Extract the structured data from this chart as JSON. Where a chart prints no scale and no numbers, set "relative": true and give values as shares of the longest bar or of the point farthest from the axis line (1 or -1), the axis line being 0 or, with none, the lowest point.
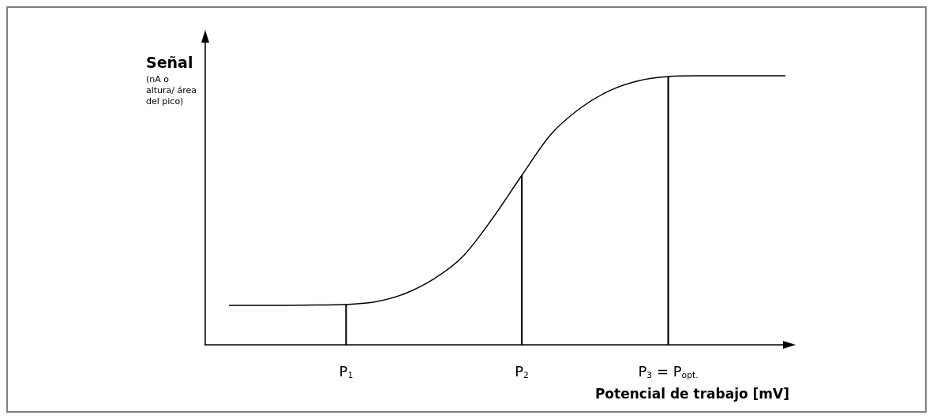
{
  "chart_data": {
    "type": "line",
    "relative": true,
    "ylabel": "Señal",
    "xlabel": "Potencial de trabajo [mV]",
    "annotations": [
      "(nA o altura/ área del pico)"
    ],
    "categories": [
      null,
      null,
      null,
      null,
      "P$_{1}$",
      null,
      null,
      null,
      null,
      null,
      "P$_{2}$",
      null,
      null,
      null,
      null,
      "P$_{3}$ = P$_{opt.}$",
      null,
      null,
      null,
      null
    ],
    "series": [
      {
        "color": "#000000",
        "values": [
          0.147,
          0.147,
          0.147,
          0.148,
          0.15,
          0.16,
          0.19,
          0.245,
          0.33,
          0.47,
          0.63,
          0.783,
          0.88,
          0.945,
          0.982,
          0.997,
          1,
          1,
          1,
          1
        ]
      },
      {
        "type": "bar",
        "color": "#000000",
        "values": [
          null,
          null,
          null,
          null,
          0.15,
          null,
          null,
          null,
          null,
          null,
          0.63,
          null,
          null,
          null,
          null,
          0.997,
          null,
          null,
          null,
          null
        ]
      }
    ]
  }
}
